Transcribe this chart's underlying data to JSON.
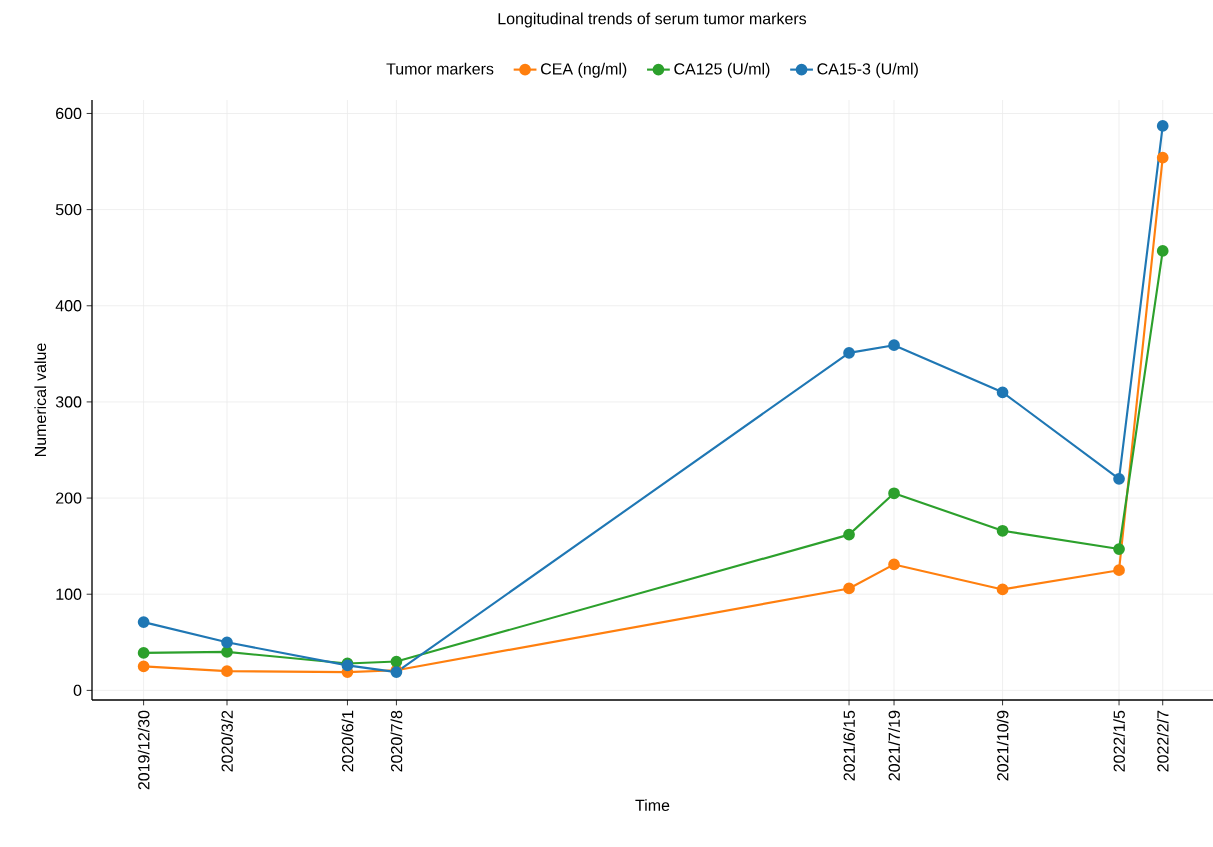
{
  "chart_data": {
    "type": "line",
    "title": "Longitudinal trends of serum tumor markers",
    "xlabel": "Time",
    "ylabel": "Numerical value",
    "legend_title": "Tumor markers",
    "legend": "top",
    "grid": true,
    "marker": "circle",
    "line_style": "solid",
    "x": [
      "2019-12-30",
      "2020-03-02",
      "2020-06-01",
      "2020-07-08",
      "2021-06-15",
      "2021-07-19",
      "2021-10-09",
      "2022-01-05",
      "2022-02-07"
    ],
    "series": [
      {
        "name": "CEA (ng/ml)",
        "color": "#ff7f0e",
        "values": [
          25,
          20,
          19,
          21,
          106,
          131,
          105,
          125,
          554
        ]
      },
      {
        "name": "CA125 (U/ml)",
        "color": "#2ca02c",
        "values": [
          39,
          40,
          28,
          30,
          162,
          205,
          166,
          147,
          457
        ]
      },
      {
        "name": "CA15-3 (U/ml)",
        "color": "#1f77b4",
        "values": [
          71,
          50,
          26,
          19,
          351,
          359,
          310,
          220,
          587
        ]
      }
    ],
    "xlim": [
      "2019-11-21",
      "2022-03-17"
    ],
    "ylim": [
      -10,
      614
    ],
    "xticks": [
      {
        "value": "2019-12-30",
        "label": "2019/12/30"
      },
      {
        "value": "2020-03-02",
        "label": "2020/3/2"
      },
      {
        "value": "2020-06-01",
        "label": "2020/6/1"
      },
      {
        "value": "2020-07-08",
        "label": "2020/7/8"
      },
      {
        "value": "2021-06-15",
        "label": "2021/6/15"
      },
      {
        "value": "2021-07-19",
        "label": "2021/7/19"
      },
      {
        "value": "2021-10-09",
        "label": "2021/10/9"
      },
      {
        "value": "2022-01-05",
        "label": "2022/1/5"
      },
      {
        "value": "2022-02-07",
        "label": "2022/2/7"
      }
    ],
    "yticks": [
      0,
      100,
      200,
      300,
      400,
      500,
      600
    ]
  }
}
